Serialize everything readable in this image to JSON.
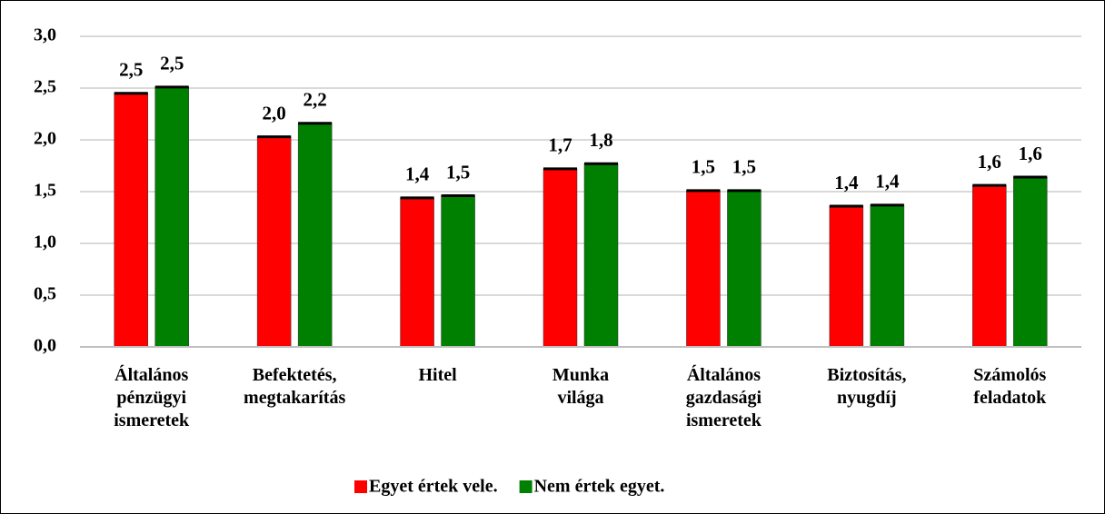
{
  "chart_data": {
    "type": "bar",
    "categories": [
      "Általános pénzügyi ismeretek",
      "Befektetés, megtakarítás",
      "Hitel",
      "Munka világa",
      "Általános gazdasági ismeretek",
      "Biztosítás, nyugdíj",
      "Számolós feladatok"
    ],
    "series": [
      {
        "name": "Egyet értek vele.",
        "color": "#ff0000",
        "values": [
          2.45,
          2.03,
          1.44,
          1.72,
          1.51,
          1.36,
          1.56
        ],
        "value_labels": [
          "2,5",
          "2,0",
          "1,4",
          "1,7",
          "1,5",
          "1,4",
          "1,6"
        ]
      },
      {
        "name": "Nem értek egyet.",
        "color": "#008000",
        "values": [
          2.51,
          2.16,
          1.46,
          1.77,
          1.51,
          1.37,
          1.64
        ],
        "value_labels": [
          "2,5",
          "2,2",
          "1,5",
          "1,8",
          "1,5",
          "1,4",
          "1,6"
        ]
      }
    ],
    "ylim": [
      0,
      3
    ],
    "yticks": [
      {
        "value": 0,
        "label": "0,0"
      },
      {
        "value": 0.5,
        "label": "0,5"
      },
      {
        "value": 1,
        "label": "1,0"
      },
      {
        "value": 1.5,
        "label": "1,5"
      },
      {
        "value": 2,
        "label": "2,0"
      },
      {
        "value": 2.5,
        "label": "2,5"
      },
      {
        "value": 3,
        "label": "3,0"
      }
    ],
    "grid": true,
    "legend": "bottom"
  }
}
